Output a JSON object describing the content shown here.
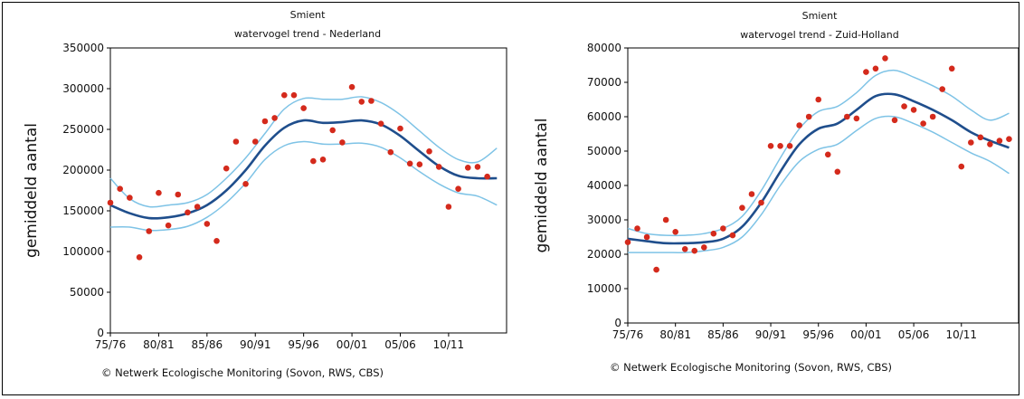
{
  "chart_data": [
    {
      "type": "line",
      "title": "Smient",
      "subtitle": "watervogel trend - Nederland",
      "xlabel": "",
      "ylabel": "gemiddeld aantal",
      "credit": "© Netwerk Ecologische Monitoring (Sovon, RWS, CBS)",
      "x_tick_labels": [
        "75/76",
        "80/81",
        "85/86",
        "90/91",
        "95/96",
        "00/01",
        "05/06",
        "10/11"
      ],
      "x_range": [
        1975,
        2016
      ],
      "y_ticks": [
        0,
        50000,
        100000,
        150000,
        200000,
        250000,
        300000,
        350000
      ],
      "y_tick_labels": [
        "0",
        "50000",
        "100000",
        "150000",
        "200000",
        "250000",
        "300000",
        "350000"
      ],
      "ylim": [
        0,
        350000
      ],
      "colors": {
        "trend": "#1f4e8c",
        "band": "#7ec3e6",
        "points": "#d42a1c"
      },
      "series": [
        {
          "role": "trend",
          "x": [
            1975,
            1977,
            1979,
            1981,
            1983,
            1985,
            1987,
            1989,
            1991,
            1993,
            1995,
            1997,
            1999,
            2001,
            2003,
            2005,
            2007,
            2009,
            2011,
            2013,
            2015
          ],
          "values": [
            157000,
            147000,
            141000,
            142000,
            147000,
            157000,
            175000,
            200000,
            230000,
            252000,
            261000,
            258000,
            259000,
            261000,
            256000,
            242000,
            223000,
            205000,
            193000,
            190000,
            190000
          ]
        },
        {
          "role": "upper",
          "x": [
            1975,
            1977,
            1979,
            1981,
            1983,
            1985,
            1987,
            1989,
            1991,
            1993,
            1995,
            1997,
            1999,
            2001,
            2003,
            2005,
            2007,
            2009,
            2011,
            2013,
            2015
          ],
          "values": [
            190000,
            165000,
            155000,
            157000,
            160000,
            170000,
            190000,
            215000,
            245000,
            275000,
            288000,
            287000,
            287000,
            290000,
            283000,
            268000,
            248000,
            228000,
            213000,
            210000,
            227000
          ]
        },
        {
          "role": "lower",
          "x": [
            1975,
            1977,
            1979,
            1981,
            1983,
            1985,
            1987,
            1989,
            1991,
            1993,
            1995,
            1997,
            1999,
            2001,
            2003,
            2005,
            2007,
            2009,
            2011,
            2013,
            2015
          ],
          "values": [
            130000,
            130000,
            126000,
            127000,
            131000,
            142000,
            160000,
            184000,
            213000,
            230000,
            235000,
            232000,
            232000,
            233000,
            228000,
            215000,
            198000,
            183000,
            172000,
            168000,
            157000
          ]
        },
        {
          "role": "observed",
          "x": [
            1975,
            1976,
            1977,
            1978,
            1979,
            1980,
            1981,
            1982,
            1983,
            1984,
            1985,
            1986,
            1987,
            1988,
            1989,
            1990,
            1991,
            1992,
            1993,
            1994,
            1995,
            1996,
            1997,
            1998,
            1999,
            2000,
            2001,
            2002,
            2003,
            2004,
            2005,
            2006,
            2007,
            2008,
            2009,
            2010,
            2011,
            2012,
            2013,
            2014
          ],
          "values": [
            160000,
            177000,
            166000,
            93000,
            125000,
            172000,
            132000,
            170000,
            148000,
            155000,
            134000,
            113000,
            202000,
            235000,
            183000,
            235000,
            260000,
            264000,
            292000,
            292000,
            276000,
            211000,
            213000,
            249000,
            234000,
            302000,
            284000,
            285000,
            257000,
            222000,
            251000,
            208000,
            207000,
            223000,
            204000,
            155000,
            177000,
            203000,
            204000,
            192000
          ]
        }
      ]
    },
    {
      "type": "line",
      "title": "Smient",
      "subtitle": "watervogel trend - Zuid-Holland",
      "xlabel": "",
      "ylabel": "gemiddeld aantal",
      "credit": "© Netwerk Ecologische Monitoring (Sovon, RWS, CBS)",
      "x_tick_labels": [
        "75/76",
        "80/81",
        "85/86",
        "90/91",
        "95/96",
        "00/01",
        "05/06",
        "10/11"
      ],
      "x_range": [
        1975,
        2016
      ],
      "y_ticks": [
        0,
        10000,
        20000,
        30000,
        40000,
        50000,
        60000,
        70000,
        80000
      ],
      "y_tick_labels": [
        "0",
        "10000",
        "20000",
        "30000",
        "40000",
        "50000",
        "60000",
        "70000",
        "80000"
      ],
      "ylim": [
        0,
        80000
      ],
      "colors": {
        "trend": "#1f4e8c",
        "band": "#7ec3e6",
        "points": "#d42a1c"
      },
      "series": [
        {
          "role": "trend",
          "x": [
            1975,
            1977,
            1979,
            1981,
            1983,
            1985,
            1987,
            1989,
            1991,
            1993,
            1995,
            1997,
            1999,
            2001,
            2003,
            2005,
            2007,
            2009,
            2011,
            2013,
            2015
          ],
          "values": [
            24500,
            23800,
            23200,
            23200,
            23500,
            24500,
            28000,
            35000,
            44000,
            52000,
            56500,
            58000,
            62000,
            66000,
            66500,
            64500,
            62000,
            59000,
            55500,
            53000,
            51000
          ]
        },
        {
          "role": "upper",
          "x": [
            1975,
            1977,
            1979,
            1981,
            1983,
            1985,
            1987,
            1989,
            1991,
            1993,
            1995,
            1997,
            1999,
            2001,
            2003,
            2005,
            2007,
            2009,
            2011,
            2013,
            2015
          ],
          "values": [
            27500,
            26000,
            25500,
            25500,
            26000,
            27500,
            31000,
            38500,
            48000,
            56500,
            61500,
            63000,
            67000,
            72000,
            73500,
            71500,
            69000,
            66000,
            62000,
            59000,
            61000
          ]
        },
        {
          "role": "lower",
          "x": [
            1975,
            1977,
            1979,
            1981,
            1983,
            1985,
            1987,
            1989,
            1991,
            1993,
            1995,
            1997,
            1999,
            2001,
            2003,
            2005,
            2007,
            2009,
            2011,
            2013,
            2015
          ],
          "values": [
            20500,
            20500,
            20500,
            20500,
            21000,
            22000,
            25000,
            31500,
            40000,
            47000,
            50500,
            52000,
            56000,
            59500,
            60000,
            58000,
            55500,
            52500,
            49500,
            47000,
            43500
          ]
        },
        {
          "role": "observed",
          "x": [
            1975,
            1976,
            1977,
            1978,
            1979,
            1980,
            1981,
            1982,
            1983,
            1984,
            1985,
            1986,
            1987,
            1988,
            1989,
            1990,
            1991,
            1992,
            1993,
            1994,
            1995,
            1996,
            1997,
            1998,
            1999,
            2000,
            2001,
            2002,
            2003,
            2004,
            2005,
            2006,
            2007,
            2008,
            2009,
            2010,
            2011,
            2012,
            2013,
            2014,
            2015
          ],
          "values": [
            23500,
            27500,
            25000,
            15500,
            30000,
            26500,
            21500,
            21000,
            22000,
            26000,
            27500,
            25500,
            33500,
            37500,
            35000,
            51500,
            51500,
            51500,
            57500,
            60000,
            65000,
            49000,
            44000,
            60000,
            59500,
            73000,
            74000,
            77000,
            59000,
            63000,
            62000,
            58000,
            60000,
            68000,
            74000,
            45500,
            52500,
            54000,
            52000,
            53000,
            53500
          ]
        }
      ]
    }
  ]
}
